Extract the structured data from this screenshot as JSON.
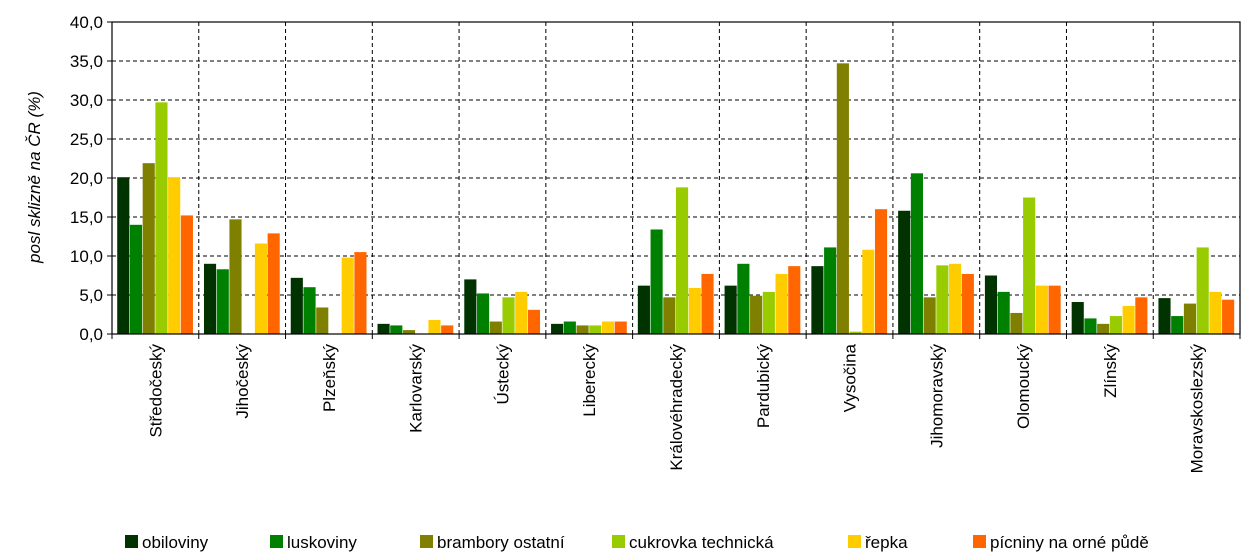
{
  "chart_data": {
    "type": "bar",
    "ylabel": "posl sklizně na ČR (%)",
    "ylim": [
      0,
      40
    ],
    "ytick_step": 5,
    "ytick_labels": [
      "0,0",
      "5,0",
      "10,0",
      "15,0",
      "20,0",
      "25,0",
      "30,0",
      "35,0",
      "40,0"
    ],
    "grid": true,
    "legend_position": "bottom",
    "categories": [
      "Středočeský",
      "Jihočeský",
      "Plzeňský",
      "Karlovarský",
      "Ústecký",
      "Liberecký",
      "Královéhradecký",
      "Pardubický",
      "Vysočina",
      "Jihomoravský",
      "Olomoucký",
      "Zlínský",
      "Moravskoslezský"
    ],
    "series": [
      {
        "name": "obiloviny",
        "color": "#003300",
        "values": [
          20.1,
          9.0,
          7.2,
          1.3,
          7.0,
          1.3,
          6.2,
          6.2,
          8.7,
          15.8,
          7.5,
          4.1,
          4.6
        ]
      },
      {
        "name": "luskoviny",
        "color": "#008000",
        "values": [
          14.0,
          8.3,
          6.0,
          1.1,
          5.2,
          1.6,
          13.4,
          9.0,
          11.1,
          20.6,
          5.4,
          2.0,
          2.3
        ]
      },
      {
        "name": "brambory ostatní",
        "color": "#808000",
        "values": [
          21.9,
          14.7,
          3.4,
          0.5,
          1.6,
          1.1,
          4.7,
          4.9,
          34.7,
          4.7,
          2.7,
          1.3,
          3.9
        ]
      },
      {
        "name": "cukrovka technická",
        "color": "#99CC00",
        "values": [
          29.7,
          0.0,
          0.0,
          0.0,
          4.7,
          1.1,
          18.8,
          5.4,
          0.3,
          8.8,
          17.5,
          2.3,
          11.1
        ]
      },
      {
        "name": "řepka",
        "color": "#FFCC00",
        "values": [
          20.1,
          11.6,
          9.8,
          1.8,
          5.4,
          1.6,
          5.9,
          7.7,
          10.8,
          9.0,
          6.2,
          3.6,
          5.4
        ]
      },
      {
        "name": "pícniny na orné půdě",
        "color": "#FF6600",
        "values": [
          15.2,
          12.9,
          10.5,
          1.1,
          3.1,
          1.6,
          7.7,
          8.7,
          16.0,
          7.7,
          6.2,
          4.7,
          4.4
        ]
      }
    ]
  }
}
